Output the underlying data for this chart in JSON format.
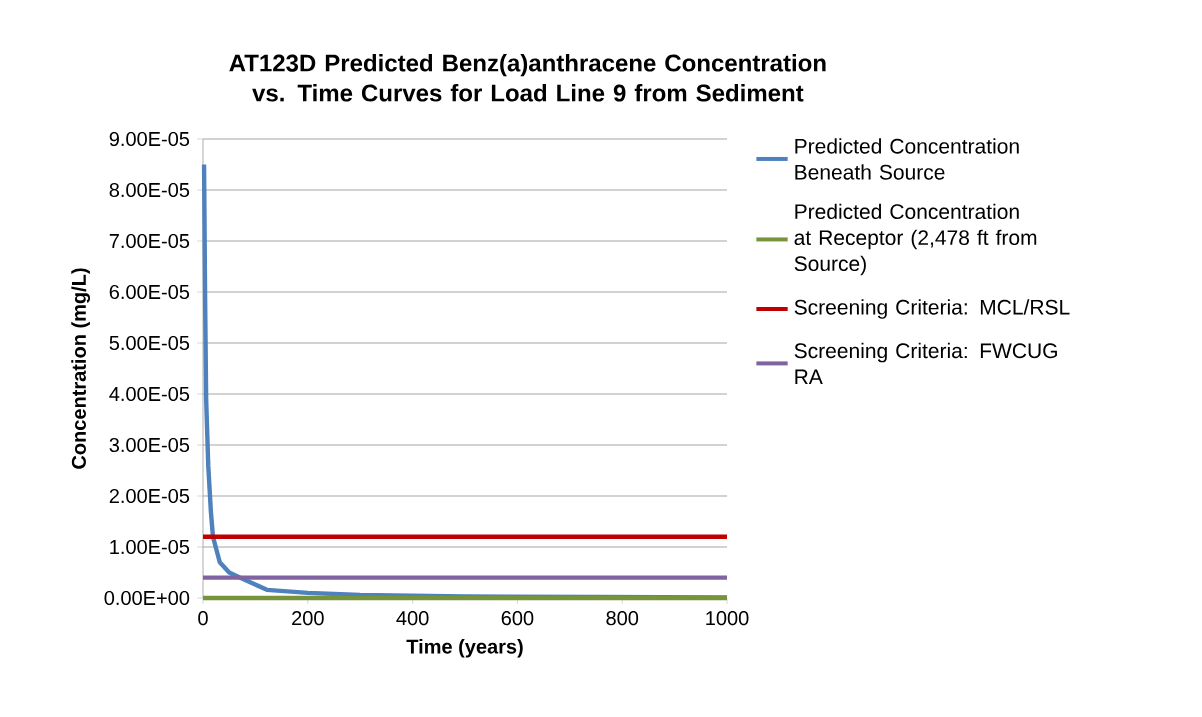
{
  "chart_data": {
    "type": "line",
    "title": "AT123D Predicted Benz(a)anthracene Concentration vs. Time Curves for Load Line 9 from Sediment",
    "xlabel": "Time (years)",
    "ylabel": "Concentration (mg/L)",
    "xlim": [
      0,
      1000
    ],
    "xticks": [
      0,
      200,
      400,
      600,
      800,
      1000
    ],
    "ylim": [
      0,
      9e-05
    ],
    "yticks": [
      {
        "value": 0,
        "label": "0.00E+00"
      },
      {
        "value": 1e-05,
        "label": "1.00E-05"
      },
      {
        "value": 2e-05,
        "label": "2.00E-05"
      },
      {
        "value": 3e-05,
        "label": "3.00E-05"
      },
      {
        "value": 4e-05,
        "label": "4.00E-05"
      },
      {
        "value": 5e-05,
        "label": "5.00E-05"
      },
      {
        "value": 6e-05,
        "label": "6.00E-05"
      },
      {
        "value": 7e-05,
        "label": "7.00E-05"
      },
      {
        "value": 8e-05,
        "label": "8.00E-05"
      },
      {
        "value": 9e-05,
        "label": "9.00E-05"
      }
    ],
    "grid": "y",
    "legend": "right",
    "marker": "none",
    "line_style": "solid",
    "series": [
      {
        "name": "Predicted Concentration Beneath Source",
        "color": "#4f81bd",
        "x": [
          2,
          4,
          6,
          10,
          15,
          19,
          32,
          50,
          70,
          122,
          200,
          300,
          500,
          750,
          1000
        ],
        "values": [
          8.5e-05,
          5.9e-05,
          3.9e-05,
          2.6e-05,
          1.7e-05,
          1.2e-05,
          7e-06,
          5e-06,
          4e-06,
          1.6e-06,
          1e-06,
          6e-07,
          3e-07,
          2e-07,
          1e-07
        ]
      },
      {
        "name": "Predicted Concentration at Receptor (2,478 ft from Source)",
        "color": "#77933c",
        "x": [
          0,
          1000
        ],
        "values": [
          0,
          0
        ]
      },
      {
        "name": "Screening Criteria:  MCL/RSL",
        "color": "#c00000",
        "x": [
          0,
          1000
        ],
        "values": [
          1.2e-05,
          1.2e-05
        ]
      },
      {
        "name": "Screening Criteria: FWCUG RA",
        "color": "#8064a2",
        "x": [
          0,
          1000
        ],
        "values": [
          4e-06,
          4e-06
        ]
      }
    ]
  }
}
